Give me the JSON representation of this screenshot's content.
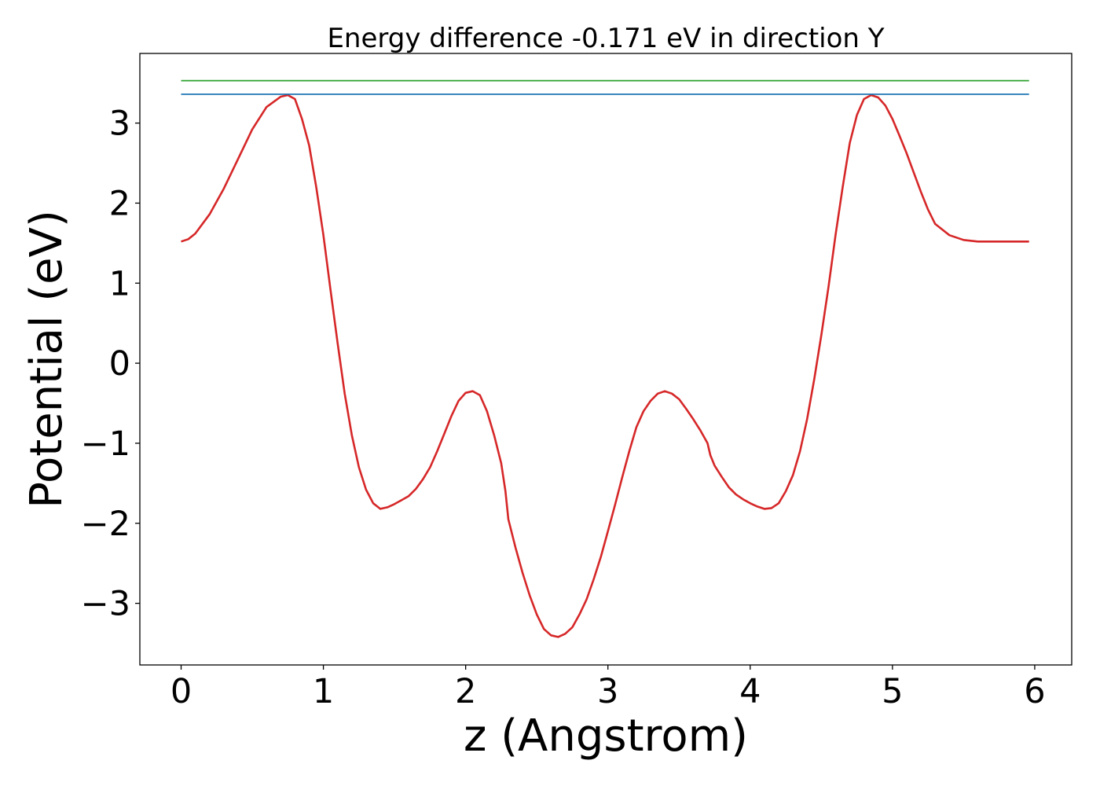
{
  "chart_data": {
    "type": "line",
    "title": "Energy difference -0.171 eV in direction Y",
    "xlabel": "z (Angstrom)",
    "ylabel": "Potential (eV)",
    "xlim": [
      -0.29,
      6.26
    ],
    "ylim": [
      -3.77,
      3.87
    ],
    "xticks": [
      0,
      1,
      2,
      3,
      4,
      5,
      6
    ],
    "yticks": [
      3,
      2,
      1,
      0,
      -1,
      -2,
      -3
    ],
    "ytick_labels": [
      "3",
      "2",
      "1",
      "0",
      "−1",
      "−2",
      "−3"
    ],
    "grid": false,
    "series": [
      {
        "color": "#d62728",
        "x": [
          0.0,
          0.05,
          0.1,
          0.2,
          0.3,
          0.4,
          0.5,
          0.6,
          0.7,
          0.75,
          0.8,
          0.85,
          0.9,
          0.95,
          1.0,
          1.05,
          1.1,
          1.15,
          1.2,
          1.25,
          1.3,
          1.35,
          1.4,
          1.45,
          1.5,
          1.55,
          1.6,
          1.65,
          1.7,
          1.75,
          1.8,
          1.85,
          1.9,
          1.95,
          2.0,
          2.05,
          2.1,
          2.15,
          2.2,
          2.25,
          2.28,
          2.3,
          2.35,
          2.4,
          2.45,
          2.5,
          2.55,
          2.6,
          2.65,
          2.7,
          2.75,
          2.8,
          2.85,
          2.9,
          2.95,
          3.0,
          3.05,
          3.1,
          3.15,
          3.2,
          3.25,
          3.3,
          3.35,
          3.4,
          3.45,
          3.5,
          3.55,
          3.6,
          3.65,
          3.7,
          3.72,
          3.75,
          3.8,
          3.85,
          3.9,
          3.95,
          4.0,
          4.05,
          4.1,
          4.15,
          4.2,
          4.25,
          4.3,
          4.35,
          4.4,
          4.45,
          4.5,
          4.55,
          4.6,
          4.65,
          4.7,
          4.75,
          4.8,
          4.85,
          4.9,
          4.95,
          5.0,
          5.05,
          5.1,
          5.15,
          5.2,
          5.25,
          5.3,
          5.4,
          5.5,
          5.6,
          5.7,
          5.8,
          5.9,
          5.96
        ],
        "y": [
          1.52,
          1.55,
          1.62,
          1.86,
          2.18,
          2.55,
          2.92,
          3.2,
          3.33,
          3.35,
          3.3,
          3.05,
          2.72,
          2.2,
          1.6,
          0.92,
          0.25,
          -0.38,
          -0.9,
          -1.3,
          -1.58,
          -1.75,
          -1.82,
          -1.8,
          -1.76,
          -1.71,
          -1.66,
          -1.57,
          -1.45,
          -1.3,
          -1.1,
          -0.88,
          -0.66,
          -0.47,
          -0.37,
          -0.35,
          -0.4,
          -0.6,
          -0.9,
          -1.25,
          -1.6,
          -1.95,
          -2.3,
          -2.62,
          -2.9,
          -3.14,
          -3.32,
          -3.4,
          -3.42,
          -3.38,
          -3.3,
          -3.14,
          -2.95,
          -2.7,
          -2.42,
          -2.1,
          -1.77,
          -1.43,
          -1.1,
          -0.8,
          -0.6,
          -0.47,
          -0.38,
          -0.35,
          -0.38,
          -0.45,
          -0.57,
          -0.7,
          -0.84,
          -1.0,
          -1.15,
          -1.28,
          -1.42,
          -1.55,
          -1.64,
          -1.7,
          -1.75,
          -1.79,
          -1.82,
          -1.81,
          -1.75,
          -1.6,
          -1.4,
          -1.1,
          -0.7,
          -0.2,
          0.35,
          0.95,
          1.6,
          2.2,
          2.75,
          3.1,
          3.3,
          3.35,
          3.32,
          3.22,
          3.05,
          2.84,
          2.62,
          2.38,
          2.14,
          1.92,
          1.74,
          1.6,
          1.54,
          1.52,
          1.52,
          1.52,
          1.52,
          1.52
        ]
      },
      {
        "color": "#1f77b4",
        "x": [
          0.0,
          5.96
        ],
        "y": [
          3.36,
          3.36
        ]
      },
      {
        "color": "#2ca02c",
        "x": [
          0.0,
          5.96
        ],
        "y": [
          3.53,
          3.53
        ]
      }
    ]
  }
}
